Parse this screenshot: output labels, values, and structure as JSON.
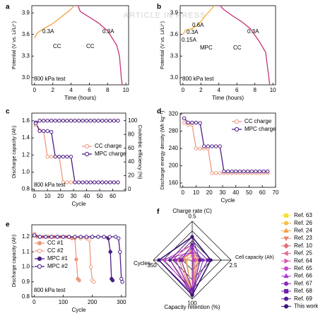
{
  "watermark": "ARTICLE IN PRESS",
  "chart_data": [
    {
      "type": "line",
      "panel": "a",
      "xlabel": "Time (hours)",
      "ylabel": "Potential (V vs. Li/Li⁺)",
      "xlim": [
        -0.3,
        10.3
      ],
      "xticks": [
        0,
        2,
        4,
        6,
        8,
        10
      ],
      "ylim": [
        2.9,
        4.0
      ],
      "yticks": [
        {
          "value": 3,
          "label": "3.0"
        },
        3.3,
        3.6,
        3.9
      ],
      "annotations": [
        "0.3A",
        "CC",
        "CC",
        "0.3A",
        "800 kPa test"
      ],
      "series": [
        {
          "color": "#f0a040",
          "x": [
            0,
            0.3,
            1,
            2,
            3,
            4,
            4.6
          ],
          "values": [
            3.55,
            3.62,
            3.68,
            3.75,
            3.85,
            3.95,
            4.05
          ]
        },
        {
          "color": "#c8327a",
          "x": [
            4.6,
            5,
            6,
            7,
            8,
            9,
            9.3,
            9.5,
            9.6
          ],
          "values": [
            4.05,
            3.92,
            3.84,
            3.76,
            3.65,
            3.45,
            3.3,
            3.0,
            2.9
          ]
        }
      ]
    },
    {
      "type": "line",
      "panel": "b",
      "xlabel": "Time (hours)",
      "ylabel": "Potential (V vs. Li/Li⁺)",
      "xlim": [
        -0.3,
        10.3
      ],
      "xticks": [
        0,
        2,
        4,
        6,
        8,
        10
      ],
      "ylim": [
        2.9,
        4.0
      ],
      "yticks": [
        {
          "value": 3,
          "label": "3.0"
        },
        3.3,
        3.6,
        3.9
      ],
      "annotations": [
        "0.15A",
        "0.3A",
        "0.6A",
        "MPC",
        "CC",
        "0.3A",
        "800 kPa test"
      ],
      "series": [
        {
          "color": "#f0b030",
          "x": [
            0,
            0.3,
            1,
            1.5,
            2,
            2.5,
            3,
            3.5,
            3.8
          ],
          "values": [
            3.6,
            3.66,
            3.68,
            3.72,
            3.78,
            3.86,
            3.93,
            4.0,
            4.05
          ]
        },
        {
          "color": "#c8327a",
          "x": [
            3.8,
            4.5,
            5.5,
            6.5,
            7.5,
            8.5,
            9.2,
            9.5,
            9.65
          ],
          "values": [
            4.05,
            3.95,
            3.86,
            3.78,
            3.68,
            3.5,
            3.35,
            3.05,
            2.9
          ]
        }
      ]
    },
    {
      "type": "line",
      "panel": "c",
      "xlabel": "Cycle",
      "ylabel": "Discharge capacity (Ah)",
      "y2label": "Coulombic efficiency (%)",
      "xlim": [
        -2,
        70
      ],
      "xticks": [
        0,
        10,
        20,
        30,
        40,
        50,
        60
      ],
      "ylim": [
        0.78,
        1.69
      ],
      "yticks": [
        0.8,
        {
          "value": 1,
          "label": "1.0"
        },
        1.2,
        1.4,
        1.6
      ],
      "y2lim": [
        -2,
        111
      ],
      "y2ticks": [
        0,
        20,
        40,
        60,
        80,
        100
      ],
      "legend": "center-right",
      "annotations": [
        "800 kPa test"
      ],
      "x": [
        1,
        4,
        7,
        10,
        13,
        16,
        19,
        22,
        25,
        28,
        31,
        34,
        37,
        40,
        43,
        46,
        49,
        52,
        55,
        58,
        61,
        64
      ],
      "series": [
        {
          "name": "CC charge",
          "color": "#ee9a80",
          "marker": "open-circle",
          "values": [
            1.58,
            1.49,
            1.48,
            1.18,
            1.18,
            1.18,
            1.18,
            0.88,
            0.88,
            0.88,
            0.88,
            0.88,
            0.88,
            0.88,
            0.88,
            0.88,
            0.88,
            0.88,
            0.88,
            0.88,
            0.88,
            0.88
          ]
        },
        {
          "name": "MPC charge",
          "color": "#4b1d86",
          "marker": "open-circle",
          "values": [
            1.58,
            1.48,
            1.48,
            1.48,
            1.47,
            1.18,
            1.18,
            1.18,
            1.18,
            1.18,
            0.88,
            0.88,
            0.88,
            0.88,
            0.88,
            0.88,
            0.88,
            0.88,
            0.88,
            0.88,
            0.88,
            0.88
          ]
        },
        {
          "color": "#ee9a80",
          "marker": "open-circle",
          "axis": "y2",
          "values": [
            94,
            100,
            100,
            100,
            100,
            100,
            100,
            100,
            100,
            100,
            100,
            100,
            100,
            100,
            100,
            100,
            100,
            100,
            100,
            100,
            100,
            100
          ]
        },
        {
          "color": "#4b1d86",
          "marker": "open-circle",
          "axis": "y2",
          "values": [
            96,
            100,
            100,
            100,
            100,
            100,
            100,
            100,
            100,
            100,
            100,
            100,
            100,
            100,
            100,
            100,
            100,
            100,
            100,
            100,
            100,
            100
          ]
        }
      ]
    },
    {
      "type": "line",
      "panel": "d",
      "xlabel": "Cycle",
      "ylabel": "Discharge energy density (Wh kg⁻¹)",
      "xlim": [
        -2,
        70
      ],
      "xticks": [
        0,
        10,
        20,
        30,
        40,
        50,
        60,
        70
      ],
      "ylim": [
        150,
        322
      ],
      "yticks": [
        160,
        200,
        240,
        280,
        320
      ],
      "legend": "upper-right",
      "x": [
        1,
        4,
        7,
        10,
        13,
        16,
        19,
        22,
        25,
        28,
        31,
        34,
        37,
        40,
        43,
        46,
        49,
        52,
        55,
        58,
        61,
        64
      ],
      "series": [
        {
          "name": "CC charge",
          "color": "#ee9a80",
          "marker": "open-circle",
          "values": [
            300,
            295,
            295,
            240,
            240,
            240,
            240,
            183,
            183,
            183,
            183,
            183,
            183,
            183,
            183,
            183,
            183,
            183,
            183,
            183,
            183,
            183
          ]
        },
        {
          "name": "MPC charge",
          "color": "#4b1d86",
          "marker": "open-circle",
          "values": [
            310,
            300,
            300,
            300,
            299,
            245,
            245,
            245,
            245,
            245,
            187,
            187,
            187,
            187,
            187,
            187,
            187,
            187,
            187,
            187,
            187,
            187
          ]
        }
      ]
    },
    {
      "type": "line",
      "panel": "e",
      "xlabel": "Cycle",
      "ylabel": "Discharge capacity (Ah)",
      "xlim": [
        -8,
        315
      ],
      "xticks": [
        0,
        100,
        200,
        300
      ],
      "ylim": [
        0.8,
        1.28
      ],
      "yticks": [
        0.8,
        0.9,
        {
          "value": 1,
          "label": "1.0"
        },
        1.1,
        1.2
      ],
      "legend": "center-left",
      "annotations": [
        "800 kPa test"
      ],
      "series": [
        {
          "name": "CC #1",
          "color": "#ee9a80",
          "marker": "filled-circle",
          "x": [
            1,
            10,
            20,
            30,
            40,
            50,
            60,
            70,
            80,
            90,
            100,
            110,
            120,
            130,
            140,
            145,
            150,
            155
          ],
          "values": [
            1.22,
            1.2,
            1.2,
            1.2,
            1.2,
            1.2,
            1.2,
            1.2,
            1.2,
            1.2,
            1.2,
            1.2,
            1.2,
            1.19,
            1.19,
            1.05,
            0.92,
            0.91
          ]
        },
        {
          "name": "CC #2",
          "color": "#ee9a80",
          "marker": "open-circle",
          "x": [
            1,
            20,
            40,
            60,
            80,
            100,
            120,
            140,
            160,
            180,
            190,
            195,
            200,
            205
          ],
          "values": [
            1.22,
            1.2,
            1.2,
            1.2,
            1.2,
            1.2,
            1.2,
            1.2,
            1.19,
            1.19,
            1.18,
            1.0,
            0.91,
            0.9
          ]
        },
        {
          "name": "MPC #1",
          "color": "#4b1d86",
          "marker": "filled-circle",
          "x": [
            1,
            20,
            40,
            60,
            80,
            100,
            120,
            140,
            160,
            180,
            200,
            220,
            240,
            255,
            262,
            266,
            270
          ],
          "values": [
            1.21,
            1.2,
            1.2,
            1.2,
            1.2,
            1.2,
            1.2,
            1.2,
            1.2,
            1.2,
            1.2,
            1.2,
            1.2,
            1.19,
            1.1,
            0.92,
            0.91
          ]
        },
        {
          "name": "MPC #2",
          "color": "#4b1d86",
          "marker": "open-circle",
          "x": [
            1,
            20,
            40,
            60,
            80,
            100,
            120,
            140,
            160,
            180,
            200,
            220,
            240,
            260,
            280,
            290,
            295,
            300,
            303
          ],
          "values": [
            1.21,
            1.2,
            1.2,
            1.2,
            1.2,
            1.2,
            1.2,
            1.2,
            1.2,
            1.2,
            1.2,
            1.2,
            1.2,
            1.2,
            1.2,
            1.19,
            1.1,
            0.92,
            0.9
          ]
        }
      ]
    },
    {
      "type": "radar",
      "panel": "f",
      "axes": [
        {
          "label": "Charge rate (C)",
          "max": 0.5
        },
        {
          "label": "Cell capacity (Ah)",
          "max": 2.5
        },
        {
          "label": "Capacity retention (%)",
          "max": 100
        },
        {
          "label": "Cycles",
          "max": 350
        }
      ],
      "series": [
        {
          "name": "Ref. 63",
          "color": "#f2e23c",
          "marker": "square",
          "values": [
            0.1,
            0.05,
            80,
            100
          ]
        },
        {
          "name": "Ref. 26",
          "color": "#f5c04a",
          "marker": "circle",
          "values": [
            0.2,
            0.1,
            90,
            50
          ]
        },
        {
          "name": "Ref. 24",
          "color": "#f0a04a",
          "marker": "triangle",
          "values": [
            0.1,
            0.3,
            85,
            100
          ]
        },
        {
          "name": "Ref. 23",
          "color": "#e8866a",
          "marker": "triangle-down",
          "values": [
            0.05,
            0.2,
            80,
            60
          ]
        },
        {
          "name": "Ref. 10",
          "color": "#e07276",
          "marker": "diamond",
          "values": [
            0.1,
            0.2,
            88,
            120
          ]
        },
        {
          "name": "Ref. 25",
          "color": "#e06a9c",
          "marker": "triangle-left",
          "values": [
            0.2,
            0.4,
            80,
            200
          ]
        },
        {
          "name": "Ref. 64",
          "color": "#d858b4",
          "marker": "triangle-right",
          "values": [
            0.1,
            0.5,
            85,
            150
          ]
        },
        {
          "name": "Ref. 65",
          "color": "#c848c8",
          "marker": "circle",
          "values": [
            0.2,
            0.1,
            80,
            250
          ]
        },
        {
          "name": "Ref. 66",
          "color": "#a83cc8",
          "marker": "triangle",
          "values": [
            0.1,
            0.05,
            85,
            300
          ]
        },
        {
          "name": "Ref. 67",
          "color": "#8a2cbc",
          "marker": "circle",
          "values": [
            0.15,
            0.7,
            90,
            150
          ]
        },
        {
          "name": "Ref. 68",
          "color": "#6e22a6",
          "marker": "square",
          "values": [
            0.2,
            1.0,
            75,
            100
          ]
        },
        {
          "name": "Ref. 69",
          "color": "#581c92",
          "marker": "circle",
          "values": [
            0.3,
            0.5,
            90,
            200
          ]
        },
        {
          "name": "This work",
          "color": "#3a1878",
          "marker": "circle",
          "values": [
            0.3,
            1.2,
            90,
            300
          ]
        }
      ]
    }
  ]
}
